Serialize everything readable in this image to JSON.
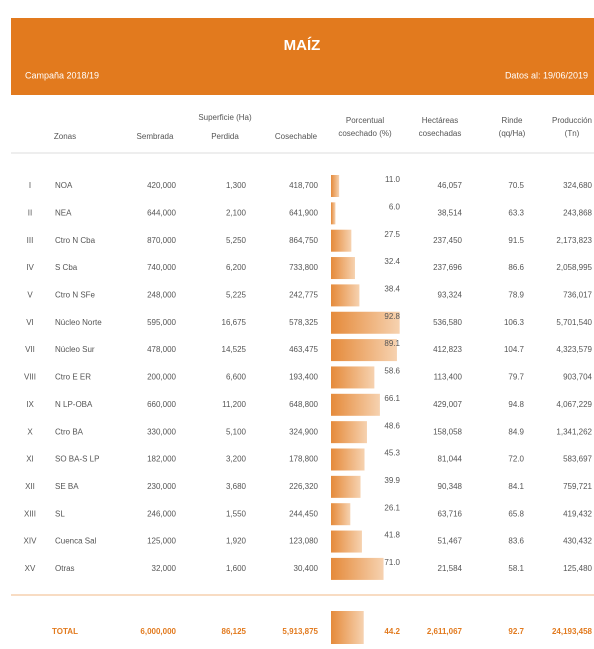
{
  "header": {
    "title": "MAÍZ",
    "campaign": "Campaña 2018/19",
    "date": "Datos al: 19/06/2019"
  },
  "table": {
    "group_header": "Superficie (Ha)",
    "columns": [
      "Zonas",
      "Sembrada",
      "Perdida",
      "Cosechable",
      [
        "Porcentual",
        "cosechado (%)"
      ],
      [
        "Hectáreas",
        "cosechadas"
      ],
      [
        "Rinde",
        "(qq/Ha)"
      ],
      [
        "Producción",
        "(Tn)"
      ]
    ],
    "rows": [
      [
        "I",
        "NOA",
        "420,000",
        "1,300",
        "418,700",
        "11.0",
        "46,057",
        "70.5",
        "324,680"
      ],
      [
        "II",
        "NEA",
        "644,000",
        "2,100",
        "641,900",
        "6.0",
        "38,514",
        "63.3",
        "243,868"
      ],
      [
        "III",
        "Ctro N Cba",
        "870,000",
        "5,250",
        "864,750",
        "27.5",
        "237,450",
        "91.5",
        "2,173,823"
      ],
      [
        "IV",
        "S Cba",
        "740,000",
        "6,200",
        "733,800",
        "32.4",
        "237,696",
        "86.6",
        "2,058,995"
      ],
      [
        "V",
        "Ctro N SFe",
        "248,000",
        "5,225",
        "242,775",
        "38.4",
        "93,324",
        "78.9",
        "736,017"
      ],
      [
        "VI",
        "Núcleo Norte",
        "595,000",
        "16,675",
        "578,325",
        "92.8",
        "536,580",
        "106.3",
        "5,701,540"
      ],
      [
        "VII",
        "Núcleo Sur",
        "478,000",
        "14,525",
        "463,475",
        "89.1",
        "412,823",
        "104.7",
        "4,323,579"
      ],
      [
        "VIII",
        "Ctro E ER",
        "200,000",
        "6,600",
        "193,400",
        "58.6",
        "113,400",
        "79.7",
        "903,704"
      ],
      [
        "IX",
        "N LP-OBA",
        "660,000",
        "11,200",
        "648,800",
        "66.1",
        "429,007",
        "94.8",
        "4,067,229"
      ],
      [
        "X",
        "Ctro BA",
        "330,000",
        "5,100",
        "324,900",
        "48.6",
        "158,058",
        "84.9",
        "1,341,262"
      ],
      [
        "XI",
        "SO BA-S LP",
        "182,000",
        "3,200",
        "178,800",
        "45.3",
        "81,044",
        "72.0",
        "583,697"
      ],
      [
        "XII",
        "SE BA",
        "230,000",
        "3,680",
        "226,320",
        "39.9",
        "90,348",
        "84.1",
        "759,721"
      ],
      [
        "XIII",
        "SL",
        "246,000",
        "1,550",
        "244,450",
        "26.1",
        "63,716",
        "65.8",
        "419,432"
      ],
      [
        "XIV",
        "Cuenca Sal",
        "125,000",
        "1,920",
        "123,080",
        "41.8",
        "51,467",
        "83.6",
        "430,432"
      ],
      [
        "XV",
        "Otras",
        "32,000",
        "1,600",
        "30,400",
        "71.0",
        "21,584",
        "58.1",
        "125,480"
      ]
    ],
    "total": [
      "TOTAL",
      "6,000,000",
      "86,125",
      "5,913,875",
      "44.2",
      "2,611,067",
      "92.7",
      "24,193,458"
    ]
  }
}
